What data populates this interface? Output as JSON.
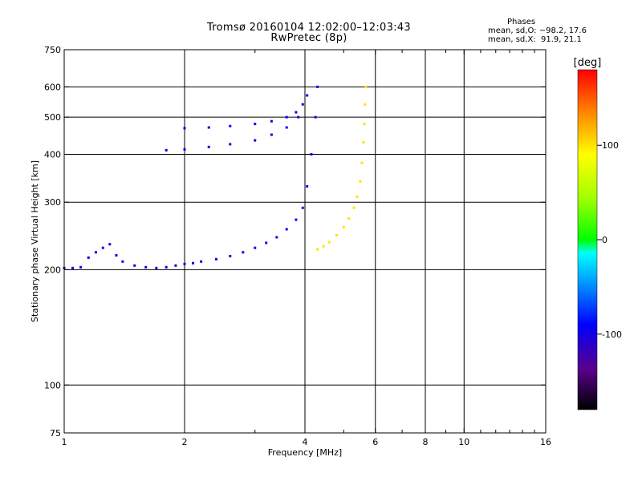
{
  "chart_data": {
    "type": "scatter",
    "title": "Tromsø 20160104 12:02:00–12:03:43",
    "subtitle": "RwPretec (8p)",
    "xlabel": "Frequency [MHz]",
    "ylabel": "Stationary phase Virtual Height [km]",
    "x_scale": "log",
    "y_scale": "log",
    "xlim": [
      1,
      16
    ],
    "ylim": [
      75,
      750
    ],
    "x_ticks": [
      1,
      2,
      4,
      6,
      8,
      10,
      16
    ],
    "x_tick_labels": [
      "1",
      "2",
      "4",
      "6",
      "8",
      "10",
      "16"
    ],
    "x_grid": [
      2,
      4,
      6,
      8,
      10
    ],
    "x_minor_ticks": [
      3,
      5,
      7,
      9,
      11,
      12,
      13,
      14,
      15
    ],
    "y_ticks": [
      75,
      100,
      200,
      300,
      400,
      500,
      600,
      750
    ],
    "y_tick_labels": [
      "75",
      "100",
      "200",
      "300",
      "400",
      "500",
      "600",
      "750"
    ],
    "y_grid": [
      100,
      200,
      300,
      400,
      500,
      600
    ],
    "grid": true,
    "stats_box": {
      "heading": "Phases",
      "line_o": "mean, sd,O: −98.2, 17.6",
      "line_x": "mean, sd,X:  91.9, 21.1"
    },
    "colorbar": {
      "label": "[deg]",
      "min": -180,
      "max": 180,
      "ticks": [
        100,
        0,
        -100
      ],
      "tick_labels": [
        "100",
        "0",
        "-100"
      ],
      "colormap": "rainbow-black-to-red"
    },
    "o_trace": {
      "phase_deg": -100,
      "points": [
        [
          1.0,
          202
        ],
        [
          1.05,
          202
        ],
        [
          1.1,
          203
        ],
        [
          1.15,
          215
        ],
        [
          1.2,
          222
        ],
        [
          1.25,
          228
        ],
        [
          1.3,
          233
        ],
        [
          1.35,
          218
        ],
        [
          1.4,
          210
        ],
        [
          1.5,
          205
        ],
        [
          1.6,
          203
        ],
        [
          1.7,
          202
        ],
        [
          1.8,
          203
        ],
        [
          1.9,
          205
        ],
        [
          2.0,
          207
        ],
        [
          2.1,
          208
        ],
        [
          2.2,
          210
        ],
        [
          2.4,
          213
        ],
        [
          2.6,
          217
        ],
        [
          2.8,
          222
        ],
        [
          3.0,
          228
        ],
        [
          3.2,
          235
        ],
        [
          3.4,
          243
        ],
        [
          3.6,
          255
        ],
        [
          3.8,
          270
        ],
        [
          3.95,
          290
        ],
        [
          4.05,
          330
        ],
        [
          4.15,
          400
        ],
        [
          4.25,
          500
        ],
        [
          4.3,
          600
        ]
      ]
    },
    "x_trace": {
      "phase_deg": 100,
      "points": [
        [
          4.3,
          226
        ],
        [
          4.45,
          230
        ],
        [
          4.6,
          236
        ],
        [
          4.8,
          246
        ],
        [
          5.0,
          258
        ],
        [
          5.15,
          272
        ],
        [
          5.3,
          290
        ],
        [
          5.4,
          310
        ],
        [
          5.5,
          340
        ],
        [
          5.55,
          380
        ],
        [
          5.6,
          430
        ],
        [
          5.63,
          480
        ],
        [
          5.65,
          540
        ],
        [
          5.68,
          600
        ]
      ]
    },
    "f_layer_trace": {
      "phase_deg": -95,
      "points": [
        [
          2.0,
          468
        ],
        [
          2.3,
          470
        ],
        [
          2.6,
          474
        ],
        [
          3.0,
          480
        ],
        [
          3.3,
          488
        ],
        [
          3.6,
          500
        ],
        [
          3.8,
          515
        ],
        [
          3.95,
          540
        ],
        [
          4.05,
          570
        ]
      ]
    },
    "f_layer_trace_2": {
      "phase_deg": -95,
      "points": [
        [
          1.8,
          410
        ],
        [
          2.0,
          412
        ],
        [
          2.3,
          418
        ],
        [
          2.6,
          425
        ],
        [
          3.0,
          435
        ],
        [
          3.3,
          450
        ],
        [
          3.6,
          470
        ],
        [
          3.85,
          500
        ]
      ]
    }
  }
}
